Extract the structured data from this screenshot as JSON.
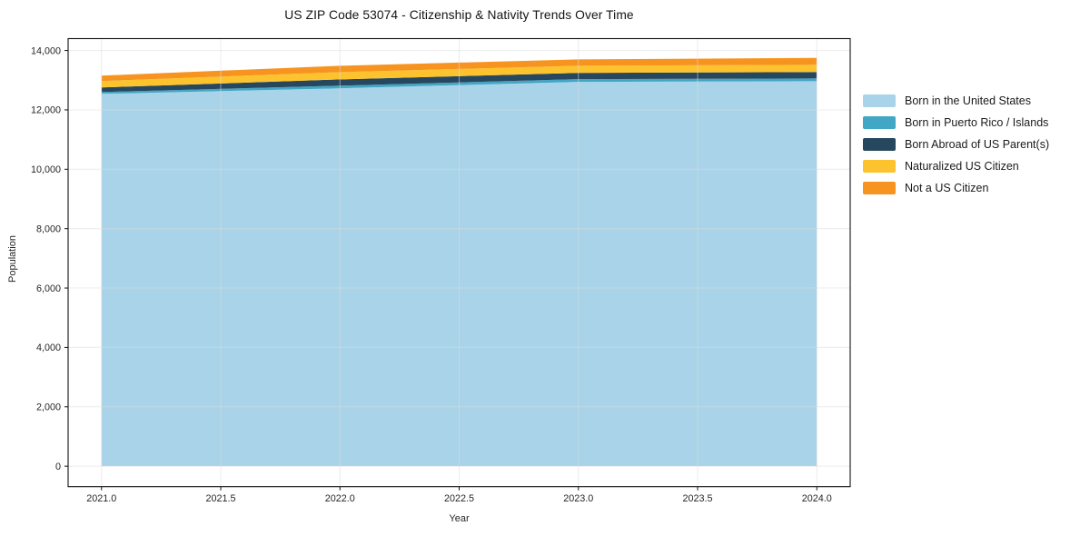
{
  "chart_data": {
    "type": "area",
    "stacked": true,
    "title": "US ZIP Code 53074 - Citizenship & Nativity Trends Over Time",
    "xlabel": "Year",
    "ylabel": "Population",
    "x": [
      2021,
      2022,
      2023,
      2024
    ],
    "series": [
      {
        "name": "Born in the United States",
        "color": "#a8d3e8",
        "values": [
          12540,
          12725,
          12945,
          12965
        ]
      },
      {
        "name": "Born in Puerto Rico / Islands",
        "color": "#42a6c5",
        "values": [
          60,
          90,
          90,
          95
        ]
      },
      {
        "name": "Born Abroad of US Parent(s)",
        "color": "#26475e",
        "values": [
          155,
          210,
          210,
          215
        ]
      },
      {
        "name": "Naturalized US Citizen",
        "color": "#fdc32f",
        "values": [
          215,
          245,
          240,
          245
        ]
      },
      {
        "name": "Not a US Citizen",
        "color": "#f79420",
        "values": [
          185,
          215,
          215,
          230
        ]
      }
    ],
    "stack_totals": [
      13155,
      13485,
      13700,
      13750
    ],
    "xlim": [
      2020.86,
      2024.14
    ],
    "ylim": [
      -690,
      14400
    ],
    "xticks": {
      "values": [
        2021.0,
        2021.5,
        2022.0,
        2022.5,
        2023.0,
        2023.5,
        2024.0
      ],
      "labels": [
        "2021.0",
        "2021.5",
        "2022.0",
        "2022.5",
        "2023.0",
        "2023.5",
        "2024.0"
      ]
    },
    "yticks": {
      "values": [
        0,
        2000,
        4000,
        6000,
        8000,
        10000,
        12000,
        14000
      ],
      "labels": [
        "0",
        "2,000",
        "4,000",
        "6,000",
        "8,000",
        "10,000",
        "12,000",
        "14,000"
      ]
    },
    "grid": true,
    "legend_position": "right"
  },
  "colors": {
    "grid": "#dcdcdc",
    "spine": "#111111",
    "tick_label": "#262626"
  }
}
